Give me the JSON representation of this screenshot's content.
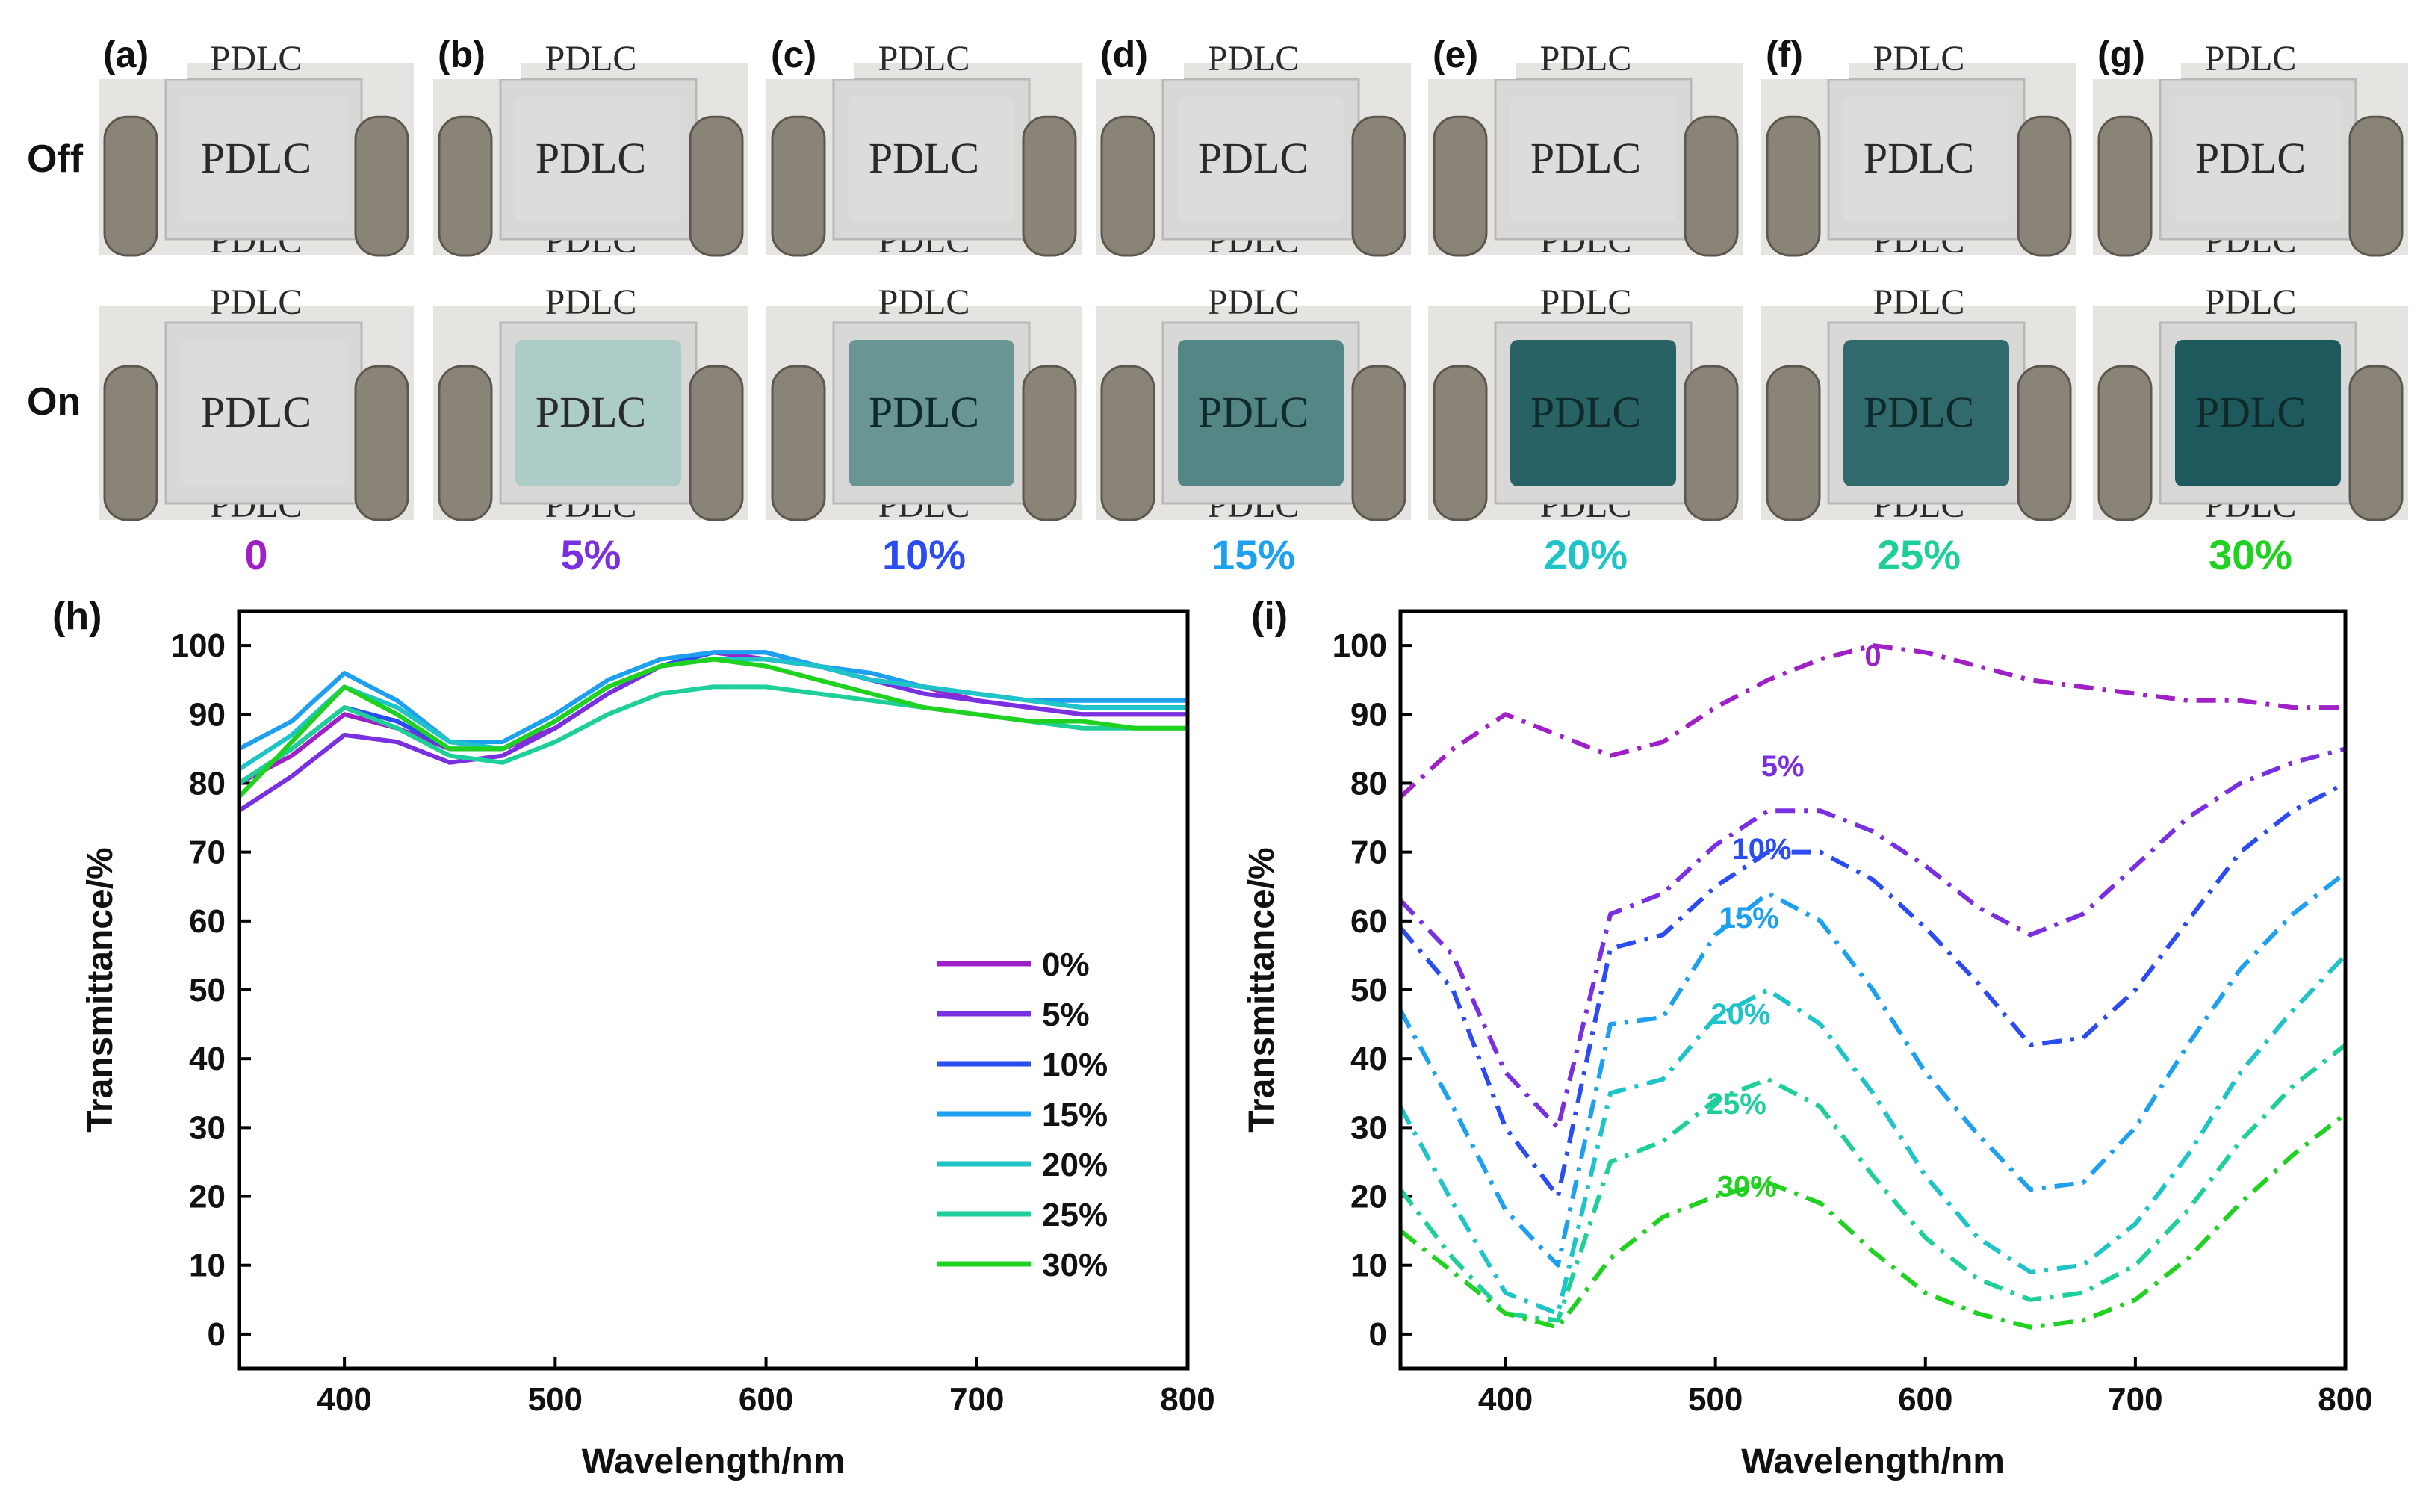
{
  "photos": {
    "row_labels": [
      "Off",
      "On"
    ],
    "panels": [
      {
        "letter": "(a)",
        "concentration": "0",
        "color": "#a020c8",
        "dye": 0.0
      },
      {
        "letter": "(b)",
        "concentration": "5%",
        "color": "#7a2fe0",
        "dye": 0.18
      },
      {
        "letter": "(c)",
        "concentration": "10%",
        "color": "#2a4cf0",
        "dye": 0.52
      },
      {
        "letter": "(d)",
        "concentration": "15%",
        "color": "#1ea0f0",
        "dye": 0.62
      },
      {
        "letter": "(e)",
        "concentration": "20%",
        "color": "#1fc4c8",
        "dye": 0.85
      },
      {
        "letter": "(f)",
        "concentration": "25%",
        "color": "#1fcf9a",
        "dye": 0.8
      },
      {
        "letter": "(g)",
        "concentration": "30%",
        "color": "#1fd21f",
        "dye": 0.9
      }
    ],
    "sample_text": "PDLC"
  },
  "chart_data": [
    {
      "panel": "(h)",
      "type": "line",
      "xlabel": "Wavelength/nm",
      "ylabel": "Transmittance/%",
      "xlim": [
        350,
        800
      ],
      "ylim": [
        -5,
        105
      ],
      "xticks": [
        400,
        500,
        600,
        700,
        800
      ],
      "yticks": [
        0,
        10,
        20,
        30,
        40,
        50,
        60,
        70,
        80,
        90,
        100
      ],
      "line_style": "solid",
      "legend_position": "lower-right",
      "x": [
        350,
        375,
        400,
        425,
        450,
        475,
        500,
        525,
        550,
        575,
        600,
        625,
        650,
        675,
        700,
        725,
        750,
        775,
        800
      ],
      "series": [
        {
          "name": "0%",
          "color": "#a020c8",
          "values": [
            80,
            84,
            90,
            88,
            85,
            85,
            88,
            93,
            97,
            99,
            98,
            97,
            95,
            94,
            92,
            91,
            90,
            90,
            90
          ]
        },
        {
          "name": "5%",
          "color": "#7a2fe0",
          "values": [
            76,
            81,
            87,
            86,
            83,
            84,
            88,
            93,
            97,
            98,
            98,
            97,
            95,
            93,
            92,
            91,
            90,
            90,
            90
          ]
        },
        {
          "name": "10%",
          "color": "#2a4cf0",
          "values": [
            80,
            85,
            91,
            89,
            85,
            85,
            89,
            94,
            97,
            99,
            99,
            97,
            95,
            94,
            93,
            92,
            91,
            91,
            91
          ]
        },
        {
          "name": "15%",
          "color": "#1ea0f0",
          "values": [
            85,
            89,
            96,
            92,
            86,
            86,
            90,
            95,
            98,
            99,
            99,
            97,
            96,
            94,
            93,
            92,
            92,
            92,
            92
          ]
        },
        {
          "name": "20%",
          "color": "#1fc4c8",
          "values": [
            82,
            87,
            94,
            91,
            86,
            85,
            89,
            94,
            97,
            98,
            98,
            97,
            95,
            94,
            93,
            92,
            91,
            91,
            91
          ]
        },
        {
          "name": "25%",
          "color": "#1fcf9a",
          "values": [
            80,
            85,
            91,
            88,
            84,
            83,
            86,
            90,
            93,
            94,
            94,
            93,
            92,
            91,
            90,
            89,
            88,
            88,
            88
          ]
        },
        {
          "name": "30%",
          "color": "#1fd21f",
          "values": [
            78,
            86,
            94,
            90,
            85,
            85,
            89,
            94,
            97,
            98,
            97,
            95,
            93,
            91,
            90,
            89,
            89,
            88,
            88
          ]
        }
      ]
    },
    {
      "panel": "(i)",
      "type": "line",
      "xlabel": "Wavelength/nm",
      "ylabel": "Transmittance/%",
      "xlim": [
        350,
        800
      ],
      "ylim": [
        -5,
        105
      ],
      "xticks": [
        400,
        500,
        600,
        700,
        800
      ],
      "yticks": [
        0,
        10,
        20,
        30,
        40,
        50,
        60,
        70,
        80,
        90,
        100
      ],
      "line_style": "dash-dot",
      "legend_position": "inline labels",
      "x": [
        350,
        375,
        400,
        425,
        450,
        475,
        500,
        525,
        550,
        575,
        600,
        625,
        650,
        675,
        700,
        725,
        750,
        775,
        800
      ],
      "series": [
        {
          "name": "0",
          "color": "#a020c8",
          "label_at": [
            575,
            97
          ],
          "values": [
            78,
            85,
            90,
            87,
            84,
            86,
            91,
            95,
            98,
            100,
            99,
            97,
            95,
            94,
            93,
            92,
            92,
            91,
            91
          ]
        },
        {
          "name": "5%",
          "color": "#7a2fe0",
          "label_at": [
            532,
            81
          ],
          "values": [
            63,
            55,
            38,
            30,
            61,
            64,
            71,
            76,
            76,
            73,
            68,
            62,
            58,
            61,
            68,
            75,
            80,
            83,
            85
          ]
        },
        {
          "name": "10%",
          "color": "#2a4cf0",
          "label_at": [
            522,
            69
          ],
          "values": [
            59,
            50,
            30,
            20,
            56,
            58,
            65,
            70,
            70,
            66,
            59,
            51,
            42,
            43,
            50,
            60,
            70,
            76,
            80
          ]
        },
        {
          "name": "15%",
          "color": "#1ea0f0",
          "label_at": [
            516,
            59
          ],
          "values": [
            47,
            33,
            18,
            10,
            45,
            46,
            58,
            64,
            60,
            50,
            38,
            29,
            21,
            22,
            30,
            42,
            53,
            61,
            67
          ]
        },
        {
          "name": "20%",
          "color": "#1fc4c8",
          "label_at": [
            512,
            45
          ],
          "values": [
            33,
            19,
            6,
            3,
            35,
            37,
            46,
            50,
            45,
            35,
            23,
            14,
            9,
            10,
            16,
            26,
            38,
            47,
            55
          ]
        },
        {
          "name": "25%",
          "color": "#1fcf9a",
          "label_at": [
            510,
            32
          ],
          "values": [
            21,
            11,
            3,
            2,
            25,
            28,
            34,
            37,
            33,
            23,
            14,
            8,
            5,
            6,
            10,
            18,
            28,
            36,
            42
          ]
        },
        {
          "name": "30%",
          "color": "#1fd21f",
          "label_at": [
            515,
            20
          ],
          "values": [
            15,
            9,
            3,
            1,
            11,
            17,
            20,
            22,
            19,
            12,
            6,
            3,
            1,
            2,
            5,
            11,
            19,
            26,
            32
          ]
        }
      ]
    }
  ]
}
